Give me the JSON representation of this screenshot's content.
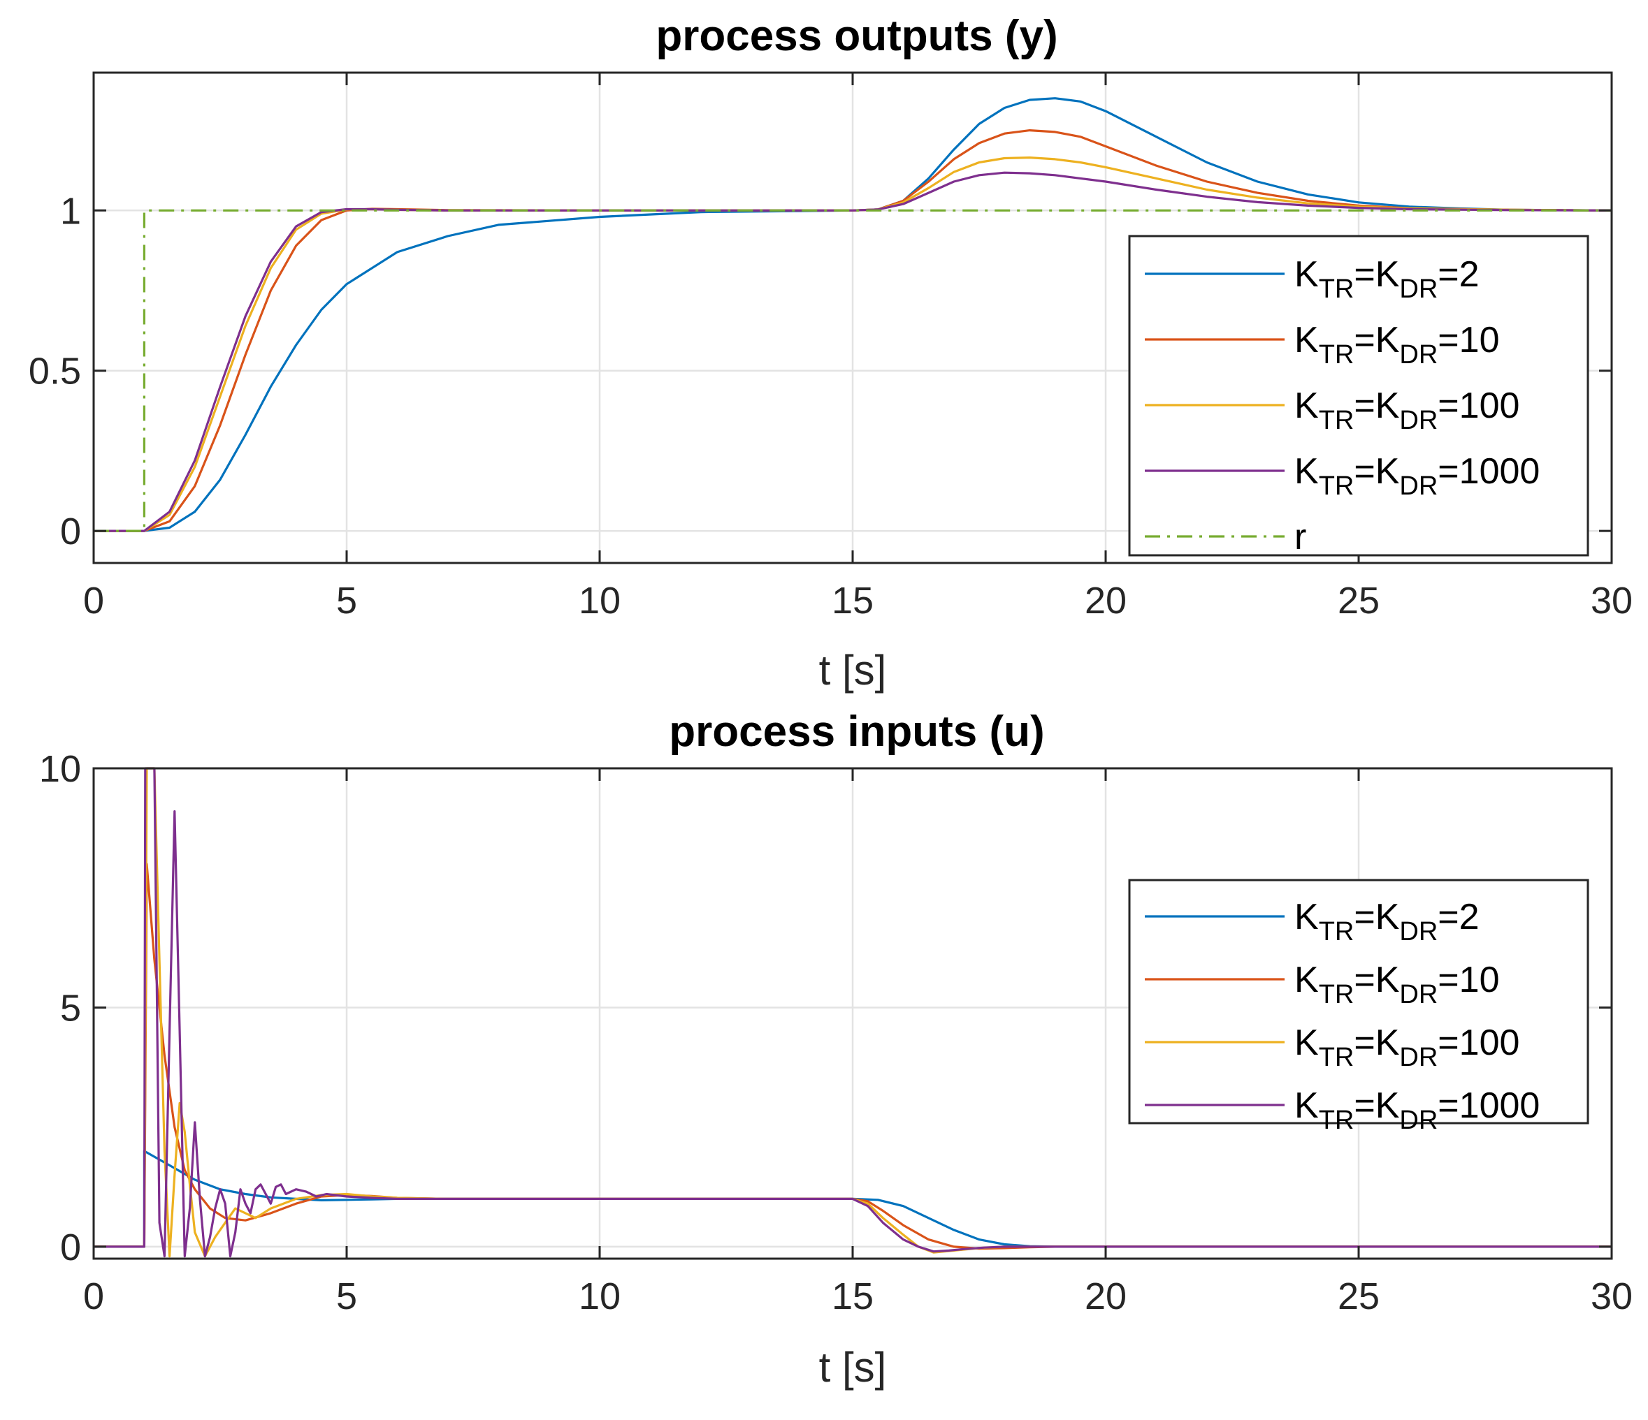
{
  "colors": {
    "blue": "#0072BD",
    "orange": "#D95319",
    "yellow": "#EDB120",
    "purple": "#7E2F8E",
    "green": "#77AC30",
    "grid": "#e3e3e3",
    "axis": "#262626"
  },
  "chart_data": [
    {
      "type": "line",
      "title": "process outputs (y)",
      "xlabel": "t [s]",
      "ylabel": "",
      "xlim": [
        0,
        30
      ],
      "ylim": [
        -0.1,
        1.43
      ],
      "xticks": [
        0,
        5,
        10,
        15,
        20,
        25,
        30
      ],
      "xtick_labels": [
        "0",
        "5",
        "10",
        "15",
        "20",
        "25",
        "30"
      ],
      "yticks": [
        0,
        0.5,
        1
      ],
      "ytick_labels": [
        "0",
        "0.5",
        "1"
      ],
      "grid": true,
      "legend_position": "center-right",
      "series": [
        {
          "name": "KTR=KDR=2",
          "label_main": "K",
          "label_sub1": "TR",
          "label_mid": "=K",
          "label_sub2": "DR",
          "label_end": "=2",
          "color": "#0072BD",
          "style": "solid",
          "x": [
            0,
            1,
            1.5,
            2,
            2.5,
            3,
            3.5,
            4,
            4.5,
            5,
            6,
            7,
            8,
            10,
            12,
            15,
            15.5,
            16,
            16.5,
            17,
            17.5,
            18,
            18.5,
            19,
            19.5,
            20,
            21,
            22,
            23,
            24,
            25,
            26,
            27,
            28,
            30
          ],
          "y": [
            0,
            0,
            0.01,
            0.06,
            0.16,
            0.3,
            0.45,
            0.58,
            0.69,
            0.77,
            0.87,
            0.92,
            0.955,
            0.98,
            0.995,
            1,
            1.003,
            1.03,
            1.1,
            1.19,
            1.27,
            1.32,
            1.345,
            1.35,
            1.34,
            1.31,
            1.23,
            1.15,
            1.09,
            1.05,
            1.025,
            1.012,
            1.006,
            1.002,
            1
          ]
        },
        {
          "name": "KTR=KDR=10",
          "label_main": "K",
          "label_sub1": "TR",
          "label_mid": "=K",
          "label_sub2": "DR",
          "label_end": "=10",
          "color": "#D95319",
          "style": "solid",
          "x": [
            0,
            1,
            1.5,
            2,
            2.5,
            3,
            3.5,
            4,
            4.5,
            5,
            5.5,
            6,
            7,
            10,
            15,
            15.5,
            16,
            16.5,
            17,
            17.5,
            18,
            18.5,
            19,
            19.5,
            20,
            21,
            22,
            23,
            24,
            25,
            26,
            28,
            30
          ],
          "y": [
            0,
            0,
            0.03,
            0.14,
            0.33,
            0.55,
            0.75,
            0.89,
            0.97,
            1.0,
            1.005,
            1.004,
            1.001,
            1,
            1,
            1.003,
            1.03,
            1.09,
            1.16,
            1.21,
            1.24,
            1.25,
            1.245,
            1.23,
            1.2,
            1.14,
            1.09,
            1.055,
            1.03,
            1.015,
            1.007,
            1.002,
            1
          ]
        },
        {
          "name": "KTR=KDR=100",
          "label_main": "K",
          "label_sub1": "TR",
          "label_mid": "=K",
          "label_sub2": "DR",
          "label_end": "=100",
          "color": "#EDB120",
          "style": "solid",
          "x": [
            0,
            1,
            1.5,
            2,
            2.5,
            3,
            3.5,
            4,
            4.5,
            5,
            5.5,
            6,
            7,
            10,
            15,
            15.5,
            16,
            16.5,
            17,
            17.5,
            18,
            18.5,
            19,
            19.5,
            20,
            21,
            22,
            23,
            24,
            25,
            26,
            28,
            30
          ],
          "y": [
            0,
            0,
            0.05,
            0.2,
            0.42,
            0.64,
            0.82,
            0.94,
            0.99,
            1.003,
            1.004,
            1.002,
            1.0,
            1,
            1,
            1.003,
            1.025,
            1.07,
            1.12,
            1.15,
            1.163,
            1.165,
            1.16,
            1.15,
            1.135,
            1.1,
            1.065,
            1.04,
            1.022,
            1.012,
            1.006,
            1.002,
            1
          ]
        },
        {
          "name": "KTR=KDR=1000",
          "label_main": "K",
          "label_sub1": "TR",
          "label_mid": "=K",
          "label_sub2": "DR",
          "label_end": "=1000",
          "color": "#7E2F8E",
          "style": "solid",
          "x": [
            0,
            1,
            1.5,
            2,
            2.5,
            3,
            3.5,
            4,
            4.5,
            5,
            5.5,
            6,
            7,
            10,
            15,
            15.5,
            16,
            16.5,
            17,
            17.5,
            18,
            18.5,
            19,
            19.5,
            20,
            21,
            22,
            23,
            24,
            25,
            26,
            28,
            30
          ],
          "y": [
            0,
            0,
            0.06,
            0.22,
            0.45,
            0.67,
            0.84,
            0.95,
            0.995,
            1.004,
            1.004,
            1.002,
            1.0,
            1,
            1,
            1.003,
            1.02,
            1.055,
            1.09,
            1.11,
            1.118,
            1.116,
            1.11,
            1.1,
            1.09,
            1.065,
            1.043,
            1.026,
            1.015,
            1.008,
            1.004,
            1.001,
            1
          ]
        },
        {
          "name": "r",
          "label_main": "r",
          "label_sub1": "",
          "label_mid": "",
          "label_sub2": "",
          "label_end": "",
          "color": "#77AC30",
          "style": "dashdot",
          "x": [
            0,
            1,
            1,
            30
          ],
          "y": [
            0,
            0,
            1,
            1
          ]
        }
      ]
    },
    {
      "type": "line",
      "title": "process inputs (u)",
      "xlabel": "t [s]",
      "ylabel": "",
      "xlim": [
        0,
        30
      ],
      "ylim": [
        -0.25,
        10
      ],
      "xticks": [
        0,
        5,
        10,
        15,
        20,
        25,
        30
      ],
      "xtick_labels": [
        "0",
        "5",
        "10",
        "15",
        "20",
        "25",
        "30"
      ],
      "yticks": [
        0,
        5,
        10
      ],
      "ytick_labels": [
        "0",
        "5",
        "10"
      ],
      "grid": true,
      "legend_position": "center-right",
      "series": [
        {
          "name": "KTR=KDR=2",
          "label_main": "K",
          "label_sub1": "TR",
          "label_mid": "=K",
          "label_sub2": "DR",
          "label_end": "=2",
          "color": "#0072BD",
          "style": "solid",
          "x": [
            0,
            1,
            1,
            1.5,
            2,
            2.5,
            3,
            3.5,
            4,
            4.5,
            5,
            5.5,
            6,
            7,
            10,
            15,
            15.5,
            16,
            16.5,
            17,
            17.5,
            18,
            18.5,
            19,
            20,
            25,
            30
          ],
          "y": [
            0,
            0,
            2.0,
            1.7,
            1.4,
            1.2,
            1.1,
            1.03,
            1.0,
            0.97,
            0.98,
            0.99,
            1.0,
            1.0,
            1.0,
            1.0,
            0.98,
            0.85,
            0.6,
            0.35,
            0.15,
            0.05,
            0.01,
            0.0,
            0.0,
            0.0,
            0.0
          ]
        },
        {
          "name": "KTR=KDR=10",
          "label_main": "K",
          "label_sub1": "TR",
          "label_mid": "=K",
          "label_sub2": "DR",
          "label_end": "=10",
          "color": "#D95319",
          "style": "solid",
          "x": [
            0,
            1,
            1.05,
            1.2,
            1.4,
            1.6,
            1.8,
            2.0,
            2.3,
            2.6,
            3.0,
            3.5,
            4.0,
            4.5,
            5.0,
            5.5,
            6.0,
            7.0,
            10,
            15,
            15.3,
            15.6,
            16,
            16.5,
            17,
            17.5,
            18,
            18.5,
            19,
            20,
            30
          ],
          "y": [
            0,
            0,
            8.0,
            6.0,
            4.0,
            2.5,
            1.6,
            1.2,
            0.8,
            0.6,
            0.55,
            0.7,
            0.9,
            1.05,
            1.08,
            1.06,
            1.02,
            1.0,
            1.0,
            1.0,
            0.95,
            0.75,
            0.45,
            0.15,
            0.0,
            -0.04,
            -0.03,
            -0.01,
            0.0,
            0.0,
            0.0
          ]
        },
        {
          "name": "KTR=KDR=100",
          "label_main": "K",
          "label_sub1": "TR",
          "label_mid": "=K",
          "label_sub2": "DR",
          "label_end": "=100",
          "color": "#EDB120",
          "style": "solid",
          "x": [
            0,
            1,
            1.05,
            1.1,
            1.2,
            1.3,
            1.4,
            1.5,
            1.6,
            1.7,
            1.8,
            1.9,
            2.0,
            2.2,
            2.4,
            2.6,
            2.8,
            3.0,
            3.2,
            3.5,
            4.0,
            4.5,
            5.0,
            5.5,
            6.0,
            7.0,
            10,
            15,
            15.3,
            15.6,
            16,
            16.3,
            16.6,
            17,
            17.5,
            18,
            19,
            20,
            30
          ],
          "y": [
            0,
            0,
            10,
            10,
            10,
            6.0,
            2.0,
            -0.2,
            1.5,
            3.0,
            2.4,
            1.3,
            0.3,
            -0.2,
            0.2,
            0.5,
            0.8,
            0.7,
            0.6,
            0.8,
            1.0,
            1.08,
            1.1,
            1.05,
            1.02,
            1.0,
            1.0,
            1.0,
            0.9,
            0.6,
            0.25,
            0.0,
            -0.12,
            -0.08,
            -0.03,
            0.0,
            0.0,
            0.0,
            0.0
          ]
        },
        {
          "name": "KTR=KDR=1000",
          "label_main": "K",
          "label_sub1": "TR",
          "label_mid": "=K",
          "label_sub2": "DR",
          "label_end": "=1000",
          "color": "#7E2F8E",
          "style": "solid",
          "x": [
            0,
            1,
            1.02,
            1.1,
            1.2,
            1.3,
            1.4,
            1.5,
            1.6,
            1.7,
            1.8,
            1.9,
            2.0,
            2.1,
            2.2,
            2.3,
            2.4,
            2.5,
            2.6,
            2.7,
            2.8,
            2.9,
            3.0,
            3.1,
            3.2,
            3.3,
            3.4,
            3.5,
            3.6,
            3.7,
            3.8,
            4.0,
            4.2,
            4.4,
            4.6,
            5.0,
            5.5,
            6.0,
            7.0,
            10,
            15,
            15.3,
            15.6,
            16,
            16.3,
            16.6,
            16.9,
            17.2,
            17.6,
            18,
            19,
            20,
            30
          ],
          "y": [
            0,
            0,
            10,
            10,
            10,
            0.5,
            -0.2,
            4.5,
            9.1,
            4.5,
            -0.2,
            0.8,
            2.6,
            1.0,
            -0.2,
            0.2,
            0.8,
            1.2,
            0.9,
            -0.2,
            0.3,
            1.2,
            0.9,
            0.7,
            1.2,
            1.3,
            1.1,
            0.9,
            1.25,
            1.3,
            1.1,
            1.2,
            1.15,
            1.05,
            1.1,
            1.05,
            1.02,
            1.0,
            1.0,
            1.0,
            1.0,
            0.85,
            0.5,
            0.15,
            0.0,
            -0.1,
            -0.08,
            -0.05,
            -0.02,
            0.0,
            0.0,
            0.0,
            0.0
          ]
        }
      ]
    }
  ]
}
